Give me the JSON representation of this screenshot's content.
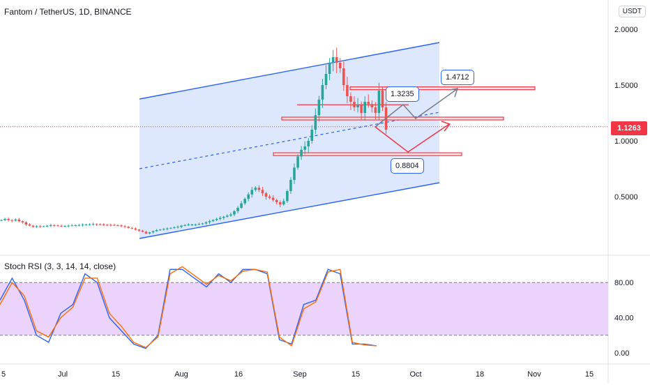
{
  "header": {
    "title": "Fantom / TetherUS, 1D, BINANCE",
    "currency_button": "USDT"
  },
  "colors": {
    "up": "#26a69a",
    "down": "#ef5350",
    "channel_fill": "#dbe6fd",
    "channel_line": "#2962ff",
    "rsi_band": "#ecd3fb",
    "k_line": "#2962ff",
    "d_line": "#ff6d00",
    "level": "#f23645",
    "projection_gray": "#787b86",
    "projection_red": "#f23645"
  },
  "chart_data": [
    {
      "type": "candlestick",
      "title": "Fantom / TetherUS, 1D, BINANCE",
      "symbol": "FTMUSDT",
      "interval": "1D",
      "exchange": "BINANCE",
      "y_unit": "USDT",
      "y_ticks": [
        "2.0000",
        "1.5000",
        "1.0000",
        "0.5000"
      ],
      "x_ticks": [
        "5",
        "Jul",
        "15",
        "Aug",
        "16",
        "Sep",
        "15",
        "Oct",
        "18",
        "Nov",
        "15"
      ],
      "last_price": "1.1263",
      "close_series": [
        0.29,
        0.3,
        0.29,
        0.285,
        0.295,
        0.28,
        0.27,
        0.25,
        0.24,
        0.23,
        0.235,
        0.232,
        0.235,
        0.238,
        0.245,
        0.242,
        0.238,
        0.236,
        0.237,
        0.24,
        0.242,
        0.244,
        0.246,
        0.248,
        0.25,
        0.252,
        0.254,
        0.252,
        0.25,
        0.248,
        0.247,
        0.246,
        0.244,
        0.242,
        0.235,
        0.23,
        0.22,
        0.215,
        0.205,
        0.195,
        0.185,
        0.17,
        0.18,
        0.19,
        0.2,
        0.205,
        0.21,
        0.215,
        0.22,
        0.225,
        0.23,
        0.24,
        0.245,
        0.25,
        0.25,
        0.25,
        0.255,
        0.26,
        0.27,
        0.28,
        0.29,
        0.3,
        0.31,
        0.32,
        0.33,
        0.34,
        0.37,
        0.4,
        0.44,
        0.48,
        0.52,
        0.56,
        0.58,
        0.56,
        0.53,
        0.5,
        0.49,
        0.47,
        0.45,
        0.43,
        0.46,
        0.55,
        0.65,
        0.76,
        0.86,
        0.92,
        0.95,
        1.0,
        1.1,
        1.23,
        1.37,
        1.5,
        1.6,
        1.7,
        1.75,
        1.7,
        1.65,
        1.5,
        1.4,
        1.35,
        1.3,
        1.32,
        1.25,
        1.35,
        1.33,
        1.3,
        1.25,
        1.45,
        1.3,
        1.1
      ],
      "annotations": {
        "channel": "ascending parallel channel with dashed midline",
        "levels": [
          "1.4712",
          "1.3235",
          "1.2",
          "0.8804"
        ],
        "labels": [
          "1.4712",
          "1.3235",
          "0.8804"
        ]
      }
    },
    {
      "type": "line",
      "title": "Stoch RSI (3, 3, 14, 14, close)",
      "y_ticks": [
        "80.00",
        "40.00",
        "0.00"
      ],
      "band": [
        20,
        80
      ],
      "series": [
        {
          "key": "k",
          "values": [
            60,
            85,
            60,
            20,
            12,
            45,
            55,
            90,
            80,
            40,
            25,
            10,
            5,
            20,
            95,
            95,
            85,
            75,
            90,
            80,
            95,
            95,
            90,
            15,
            10,
            55,
            60,
            95,
            90,
            10,
            10,
            8
          ]
        },
        {
          "key": "d",
          "values": [
            55,
            80,
            65,
            25,
            18,
            40,
            52,
            85,
            85,
            45,
            30,
            12,
            6,
            18,
            90,
            98,
            88,
            78,
            88,
            82,
            93,
            95,
            92,
            18,
            8,
            50,
            58,
            92,
            95,
            12,
            9,
            8
          ]
        }
      ]
    }
  ]
}
